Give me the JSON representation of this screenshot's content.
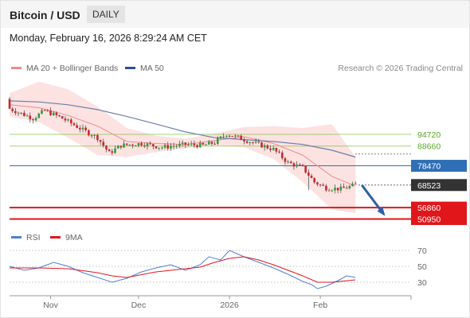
{
  "header": {
    "title": "Bitcoin / USD",
    "timeframe": "DAILY"
  },
  "timestamp": "Monday, February 16, 2026 8:29:24 AM CET",
  "legend": {
    "bollinger": "MA 20 + Bollinger Bands",
    "ma50": "MA 50",
    "credit": "Research © 2026 Trading Central"
  },
  "rsi_legend": {
    "rsi": "RSI",
    "ma": "9MA"
  },
  "colors": {
    "green": "#7cc242",
    "blue": "#2f6fb5",
    "red": "#e0161b",
    "dark": "#333333",
    "band": "#fde2e2",
    "ma20": "#f28b8b",
    "ma50": "#6a7fa8",
    "up": "#2b9f3b",
    "down": "#c8282c",
    "rsi": "#4f7fd6",
    "rsi_ma": "#e0161b"
  },
  "chart_data": [
    {
      "type": "candlestick",
      "x_ticks": [
        "Nov",
        "Dec",
        "2026",
        "Feb"
      ],
      "price_range": [
        45000,
        128000
      ],
      "series": [
        {
          "name": "MA 20 + Bollinger Bands",
          "days": [
            0,
            10,
            20,
            30,
            40,
            50,
            60,
            70,
            80,
            90,
            100,
            110,
            118
          ],
          "middle": [
            110000,
            108500,
            104500,
            99000,
            91000,
            90000,
            89500,
            91500,
            93500,
            90000,
            84000,
            73000,
            68000
          ],
          "upper": [
            116000,
            122000,
            118000,
            109000,
            98000,
            94000,
            92500,
            95000,
            98500,
            99000,
            98000,
            100000,
            83000
          ],
          "lower": [
            104000,
            101000,
            93000,
            84000,
            83000,
            85500,
            87500,
            89000,
            88000,
            82000,
            70000,
            56000,
            54000
          ]
        },
        {
          "name": "MA 50",
          "days": [
            0,
            10,
            20,
            30,
            40,
            50,
            60,
            70,
            80,
            90,
            100,
            110,
            118
          ],
          "values": [
            112000,
            111500,
            110000,
            107500,
            104000,
            100000,
            96000,
            93000,
            92000,
            91000,
            89500,
            86500,
            83000
          ]
        }
      ],
      "price_levels": [
        {
          "value": 94720,
          "label": "94720",
          "color": "green"
        },
        {
          "value": 88660,
          "label": "88660",
          "color": "green"
        },
        {
          "value": 78470,
          "label": "78470",
          "color": "blue"
        },
        {
          "value": 68523,
          "label": "68523",
          "color": "dark"
        },
        {
          "value": 56860,
          "label": "56860",
          "color": "red"
        },
        {
          "value": 50950,
          "label": "50950",
          "color": "red"
        }
      ],
      "arrow": {
        "from": [
          118,
          68500
        ],
        "to": [
          126,
          53500
        ]
      }
    },
    {
      "type": "line",
      "title": "RSI",
      "y_range": [
        15,
        80
      ],
      "y_ticks": [
        70,
        50,
        30
      ],
      "series": [
        {
          "name": "RSI",
          "days": [
            0,
            5,
            10,
            15,
            20,
            25,
            30,
            35,
            40,
            45,
            50,
            55,
            60,
            65,
            68,
            72,
            75,
            80,
            85,
            90,
            95,
            100,
            103,
            105,
            108,
            112,
            115,
            118
          ],
          "values": [
            50,
            45,
            48,
            55,
            50,
            42,
            36,
            30,
            35,
            43,
            48,
            52,
            45,
            52,
            62,
            58,
            70,
            62,
            55,
            48,
            40,
            31,
            27,
            22,
            25,
            32,
            38,
            36
          ]
        },
        {
          "name": "9MA",
          "days": [
            0,
            10,
            20,
            30,
            35,
            40,
            50,
            60,
            65,
            70,
            75,
            80,
            85,
            90,
            95,
            100,
            105,
            110,
            118
          ],
          "values": [
            48,
            48,
            47,
            42,
            38,
            36,
            43,
            47,
            49,
            55,
            60,
            62,
            58,
            52,
            45,
            38,
            30,
            30,
            33
          ]
        }
      ]
    }
  ]
}
